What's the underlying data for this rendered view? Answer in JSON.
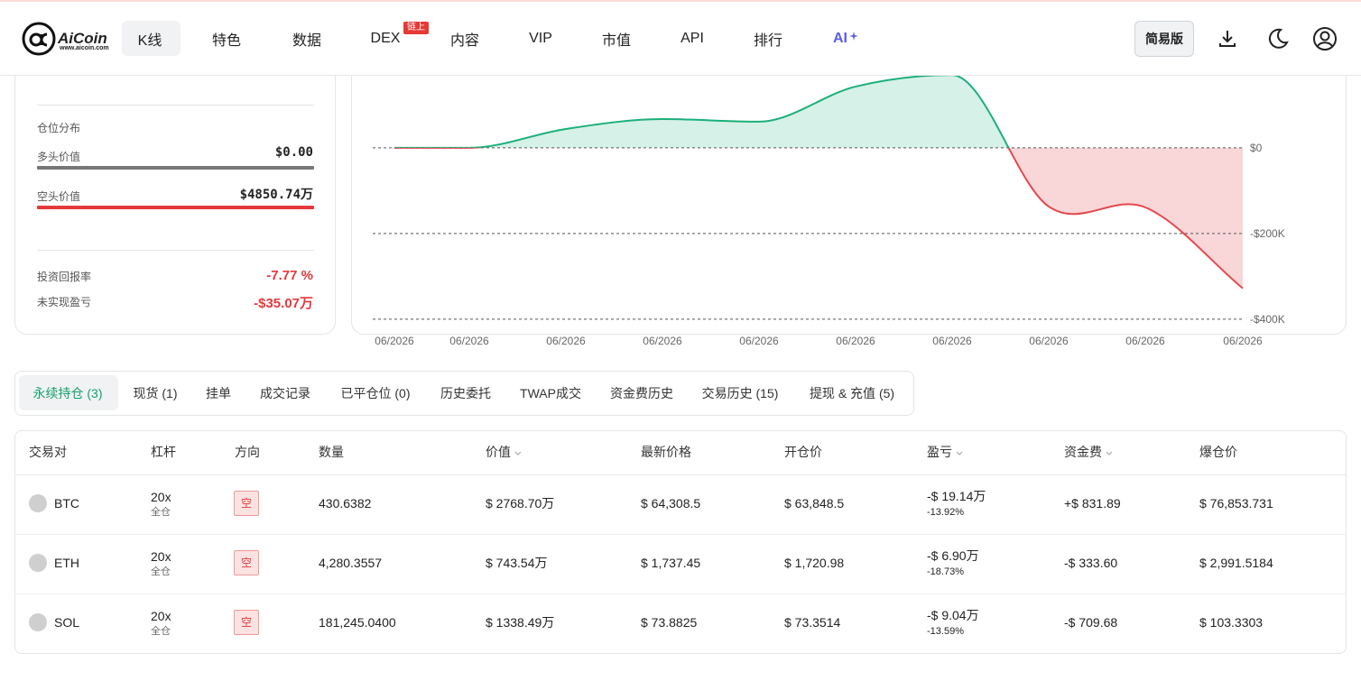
{
  "nav": {
    "logo": "AiCoin",
    "logo_url": "www.aicoin.com",
    "items": [
      "K线",
      "特色",
      "数据",
      "DEX",
      "内容",
      "VIP",
      "市值",
      "API",
      "排行",
      "AI"
    ],
    "dex_badge": "链上",
    "simple_mode": "简易版"
  },
  "summary": {
    "section": "仓位分布",
    "long_label": "多头价值",
    "long_value": "$0.00",
    "short_label": "空头价值",
    "short_value": "$4850.74万",
    "roi_label": "投资回报率",
    "roi": "-7.77 %",
    "upnl_label": "未实现盈亏",
    "upnl": "-$35.07万"
  },
  "chart_data": {
    "type": "area",
    "categories": [
      "06/2026",
      "06/2026",
      "06/2026",
      "06/2026",
      "06/2026",
      "06/2026",
      "06/2026",
      "06/2026",
      "06/2026",
      "06/2026"
    ],
    "values": [
      0,
      0,
      44000,
      67000,
      61000,
      143000,
      170000,
      -137000,
      -139000,
      -328000
    ],
    "ylim": [
      -434000,
      345000
    ],
    "yticks": [
      {
        "value": 0,
        "label": "$0"
      },
      {
        "value": -200000,
        "label": "-$200K"
      },
      {
        "value": -400000,
        "label": "-$400K"
      }
    ],
    "grid": true,
    "positive_color": "#1bb07a",
    "negative_color": "#e5484d"
  },
  "tabs": [
    "永续持仓 (3)",
    "现货 (1)",
    "挂单",
    "成交记录",
    "已平仓位 (0)",
    "历史委托",
    "TWAP成交",
    "资金费历史",
    "交易历史 (15)",
    "提现 & 充值 (5)"
  ],
  "table": {
    "columns": [
      "交易对",
      "杠杆",
      "方向",
      "数量",
      "价值",
      "最新价格",
      "开仓价",
      "盈亏",
      "资金费",
      "爆仓价"
    ],
    "rows": [
      {
        "symbol": "BTC",
        "leverage": "20x",
        "margin": "全仓",
        "side": "空",
        "quantity": "430.6382",
        "value": "$ 2768.70万",
        "last_price": "$ 64,308.5",
        "open_price": "$ 63,848.5",
        "pnl": "-$ 19.14万",
        "pnl_pct": "-13.92%",
        "funding": "+$ 831.89",
        "liq_price": "$ 76,853.731"
      },
      {
        "symbol": "ETH",
        "leverage": "20x",
        "margin": "全仓",
        "side": "空",
        "quantity": "4,280.3557",
        "value": "$ 743.54万",
        "last_price": "$ 1,737.45",
        "open_price": "$ 1,720.98",
        "pnl": "-$ 6.90万",
        "pnl_pct": "-18.73%",
        "funding": "-$ 333.60",
        "liq_price": "$ 2,991.5184"
      },
      {
        "symbol": "SOL",
        "leverage": "20x",
        "margin": "全仓",
        "side": "空",
        "quantity": "181,245.0400",
        "value": "$ 1338.49万",
        "last_price": "$ 73.8825",
        "open_price": "$ 73.3514",
        "pnl": "-$ 9.04万",
        "pnl_pct": "-13.59%",
        "funding": "-$ 709.68",
        "liq_price": "$ 103.3303"
      }
    ]
  }
}
